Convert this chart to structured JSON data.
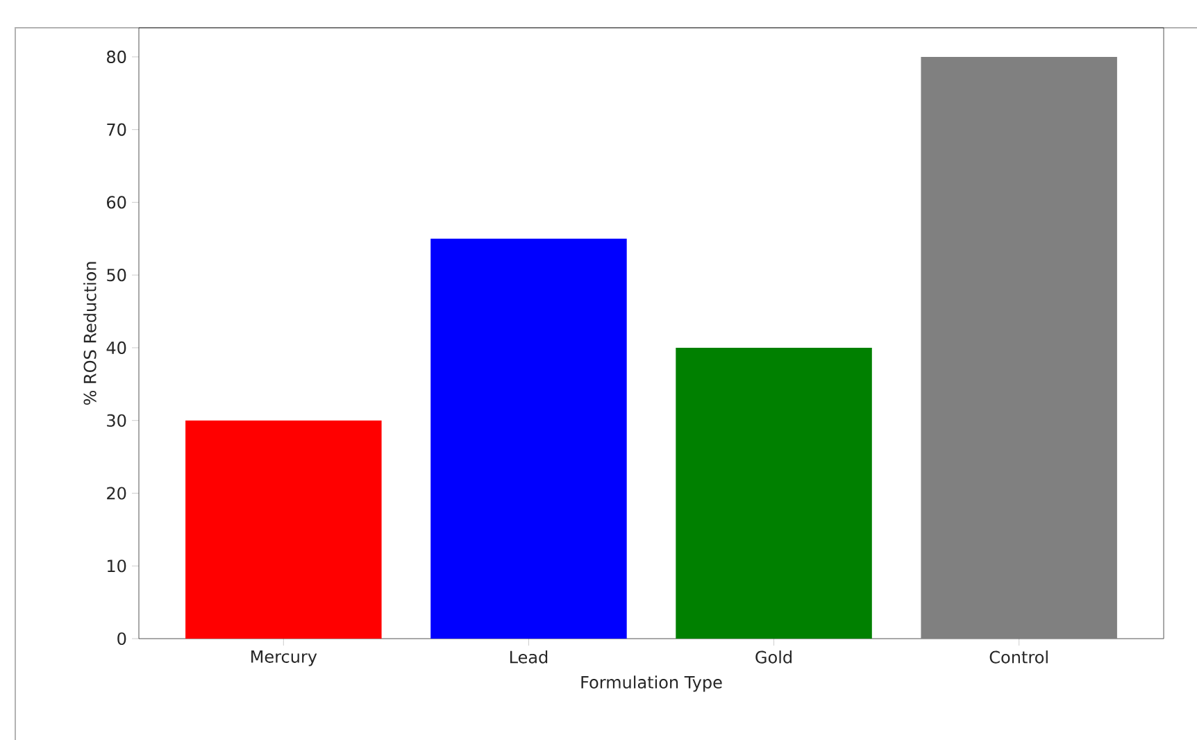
{
  "chart_data": {
    "type": "bar",
    "xlabel": "Formulation Type",
    "ylabel": "% ROS Reduction",
    "categories": [
      "Mercury",
      "Lead",
      "Gold",
      "Control"
    ],
    "values": [
      30,
      55,
      40,
      80
    ],
    "colors": [
      "#ff0000",
      "#0000ff",
      "#008000",
      "#808080"
    ],
    "ylim": [
      0,
      84
    ],
    "yticks": [
      0,
      10,
      20,
      30,
      40,
      50,
      60,
      70,
      80
    ]
  }
}
